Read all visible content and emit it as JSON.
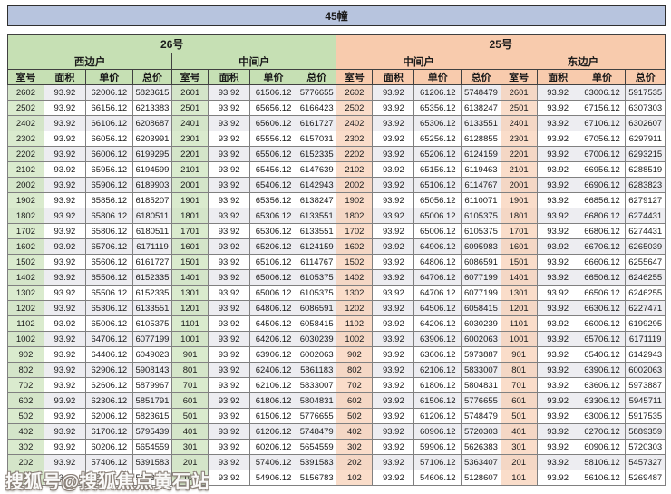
{
  "title": "45幢",
  "watermark": "搜狐号@搜狐焦点黄石站",
  "buildings": [
    {
      "label": "26号",
      "sections": [
        "西边户",
        "中间户"
      ]
    },
    {
      "label": "25号",
      "sections": [
        "中间户",
        "东边户"
      ]
    }
  ],
  "column_headers": [
    "室号",
    "面积",
    "单价",
    "总价"
  ],
  "colors": {
    "title_band": "#b7c4de",
    "building_26": "#c6e0b4",
    "building_25": "#f8cbad",
    "row_stripe": "#ededf1"
  },
  "chart_data": {
    "type": "table",
    "title": "45幢",
    "groups": [
      "26号-西边户",
      "26号-中间户",
      "25号-中间户",
      "25号-东边户"
    ],
    "columns_per_group": [
      "室号",
      "面积",
      "单价",
      "总价"
    ]
  },
  "rows": [
    [
      "2602",
      "93.92",
      "62006.12",
      "5823615",
      "2601",
      "93.92",
      "61506.12",
      "5776655",
      "2602",
      "93.92",
      "61206.12",
      "5748479",
      "2601",
      "93.92",
      "63006.12",
      "5917535"
    ],
    [
      "2502",
      "93.92",
      "66156.12",
      "6213383",
      "2501",
      "93.92",
      "65656.12",
      "6166423",
      "2502",
      "93.92",
      "65356.12",
      "6138247",
      "2501",
      "93.92",
      "67156.12",
      "6307303"
    ],
    [
      "2402",
      "93.92",
      "66106.12",
      "6208687",
      "2401",
      "93.92",
      "65606.12",
      "6161727",
      "2402",
      "93.92",
      "65306.12",
      "6133551",
      "2401",
      "93.92",
      "67106.12",
      "6302607"
    ],
    [
      "2302",
      "93.92",
      "66056.12",
      "6203991",
      "2301",
      "93.92",
      "65556.12",
      "6157031",
      "2302",
      "93.92",
      "65256.12",
      "6128855",
      "2301",
      "93.92",
      "67056.12",
      "6297911"
    ],
    [
      "2202",
      "93.92",
      "66006.12",
      "6199295",
      "2201",
      "93.92",
      "65506.12",
      "6152335",
      "2202",
      "93.92",
      "65206.12",
      "6124159",
      "2201",
      "93.92",
      "67006.12",
      "6293215"
    ],
    [
      "2102",
      "93.92",
      "65956.12",
      "6194599",
      "2101",
      "93.92",
      "65456.12",
      "6147639",
      "2102",
      "93.92",
      "65156.12",
      "6119463",
      "2101",
      "93.92",
      "66956.12",
      "6288519"
    ],
    [
      "2002",
      "93.92",
      "65906.12",
      "6189903",
      "2001",
      "93.92",
      "65406.12",
      "6142943",
      "2002",
      "93.92",
      "65106.12",
      "6114767",
      "2001",
      "93.92",
      "66906.12",
      "6283823"
    ],
    [
      "1902",
      "93.92",
      "65856.12",
      "6185207",
      "1901",
      "93.92",
      "65356.12",
      "6138247",
      "1902",
      "93.92",
      "65056.12",
      "6110071",
      "1901",
      "93.92",
      "66856.12",
      "6279127"
    ],
    [
      "1802",
      "93.92",
      "65806.12",
      "6180511",
      "1801",
      "93.92",
      "65306.12",
      "6133551",
      "1802",
      "93.92",
      "65006.12",
      "6105375",
      "1801",
      "93.92",
      "66806.12",
      "6274431"
    ],
    [
      "1702",
      "93.92",
      "65806.12",
      "6180511",
      "1701",
      "93.92",
      "65306.12",
      "6133551",
      "1702",
      "93.92",
      "65006.12",
      "6105375",
      "1701",
      "93.92",
      "66806.12",
      "6274431"
    ],
    [
      "1602",
      "93.92",
      "65706.12",
      "6171119",
      "1601",
      "93.92",
      "65206.12",
      "6124159",
      "1602",
      "93.92",
      "64906.12",
      "6095983",
      "1601",
      "93.92",
      "66706.12",
      "6265039"
    ],
    [
      "1502",
      "93.92",
      "65606.12",
      "6161727",
      "1501",
      "93.92",
      "65106.12",
      "6114767",
      "1502",
      "93.92",
      "64806.12",
      "6086591",
      "1501",
      "93.92",
      "66606.12",
      "6255647"
    ],
    [
      "1402",
      "93.92",
      "65506.12",
      "6152335",
      "1401",
      "93.92",
      "65006.12",
      "6105375",
      "1402",
      "93.92",
      "64706.12",
      "6077199",
      "1401",
      "93.92",
      "66506.12",
      "6246255"
    ],
    [
      "1302",
      "93.92",
      "65506.12",
      "6152335",
      "1301",
      "93.92",
      "65006.12",
      "6105375",
      "1302",
      "93.92",
      "64706.12",
      "6077199",
      "1301",
      "93.92",
      "66506.12",
      "6246255"
    ],
    [
      "1202",
      "93.92",
      "65306.12",
      "6133551",
      "1201",
      "93.92",
      "64806.12",
      "6086591",
      "1202",
      "93.92",
      "64506.12",
      "6058415",
      "1201",
      "93.92",
      "66306.12",
      "6227471"
    ],
    [
      "1102",
      "93.92",
      "65006.12",
      "6105375",
      "1101",
      "93.92",
      "64506.12",
      "6058415",
      "1102",
      "93.92",
      "64206.12",
      "6030239",
      "1101",
      "93.92",
      "66006.12",
      "6199295"
    ],
    [
      "1002",
      "93.92",
      "64706.12",
      "6077199",
      "1001",
      "93.92",
      "64206.12",
      "6030239",
      "1002",
      "93.92",
      "63906.12",
      "6002063",
      "1001",
      "93.92",
      "65706.12",
      "6171119"
    ],
    [
      "902",
      "93.92",
      "64406.12",
      "6049023",
      "901",
      "93.92",
      "63906.12",
      "6002063",
      "902",
      "93.92",
      "63606.12",
      "5973887",
      "901",
      "93.92",
      "65406.12",
      "6142943"
    ],
    [
      "802",
      "93.92",
      "62906.12",
      "5908143",
      "801",
      "93.92",
      "62406.12",
      "5861183",
      "802",
      "93.92",
      "62106.12",
      "5833007",
      "801",
      "93.92",
      "63906.12",
      "6002063"
    ],
    [
      "702",
      "93.92",
      "62606.12",
      "5879967",
      "701",
      "93.92",
      "62106.12",
      "5833007",
      "702",
      "93.92",
      "61806.12",
      "5804831",
      "701",
      "93.92",
      "63606.12",
      "5973887"
    ],
    [
      "602",
      "93.92",
      "62306.12",
      "5851791",
      "601",
      "93.92",
      "61806.12",
      "5804831",
      "602",
      "93.92",
      "61506.12",
      "5776655",
      "601",
      "93.92",
      "63306.12",
      "5945711"
    ],
    [
      "502",
      "93.92",
      "62006.12",
      "5823615",
      "501",
      "93.92",
      "61506.12",
      "5776655",
      "502",
      "93.92",
      "61206.12",
      "5748479",
      "501",
      "93.92",
      "63006.12",
      "5917535"
    ],
    [
      "402",
      "93.92",
      "61706.12",
      "5795439",
      "401",
      "93.92",
      "61206.12",
      "5748479",
      "402",
      "93.92",
      "60906.12",
      "5720303",
      "401",
      "93.92",
      "62706.12",
      "5889359"
    ],
    [
      "302",
      "93.92",
      "60206.12",
      "5654559",
      "301",
      "93.92",
      "60206.12",
      "5654559",
      "302",
      "93.92",
      "59906.12",
      "5626383",
      "301",
      "93.92",
      "60906.12",
      "5720303"
    ],
    [
      "202",
      "93.92",
      "57406.12",
      "5391583",
      "201",
      "93.92",
      "57406.12",
      "5391583",
      "202",
      "93.92",
      "57106.12",
      "5363407",
      "201",
      "93.92",
      "58106.12",
      "5457327"
    ],
    [
      "102",
      "93.92",
      "55406.12",
      "5203743",
      "101",
      "93.92",
      "54906.12",
      "5156783",
      "102",
      "93.92",
      "54606.12",
      "5128607",
      "101",
      "93.92",
      "56106.12",
      "5269487"
    ]
  ]
}
